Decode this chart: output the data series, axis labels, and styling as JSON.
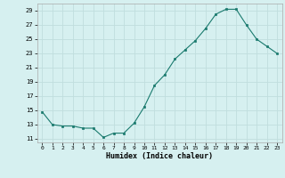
{
  "x": [
    0,
    1,
    2,
    3,
    4,
    5,
    6,
    7,
    8,
    9,
    10,
    11,
    12,
    13,
    14,
    15,
    16,
    17,
    18,
    19,
    20,
    21,
    22,
    23
  ],
  "y": [
    14.8,
    13.0,
    12.8,
    12.8,
    12.5,
    12.5,
    11.2,
    11.8,
    11.8,
    13.2,
    15.5,
    18.5,
    20.0,
    22.2,
    23.5,
    24.8,
    26.5,
    28.5,
    29.2,
    29.2,
    27.0,
    25.0,
    24.0,
    23.0
  ],
  "xlabel": "Humidex (Indice chaleur)",
  "ylim": [
    10.5,
    30.0
  ],
  "xlim": [
    -0.5,
    23.5
  ],
  "yticks": [
    11,
    13,
    15,
    17,
    19,
    21,
    23,
    25,
    27,
    29
  ],
  "xticks": [
    0,
    1,
    2,
    3,
    4,
    5,
    6,
    7,
    8,
    9,
    10,
    11,
    12,
    13,
    14,
    15,
    16,
    17,
    18,
    19,
    20,
    21,
    22,
    23
  ],
  "line_color": "#1a7a6e",
  "marker_color": "#1a7a6e",
  "bg_color": "#d6f0f0",
  "grid_color": "#c0dede",
  "spine_color": "#aaaaaa"
}
